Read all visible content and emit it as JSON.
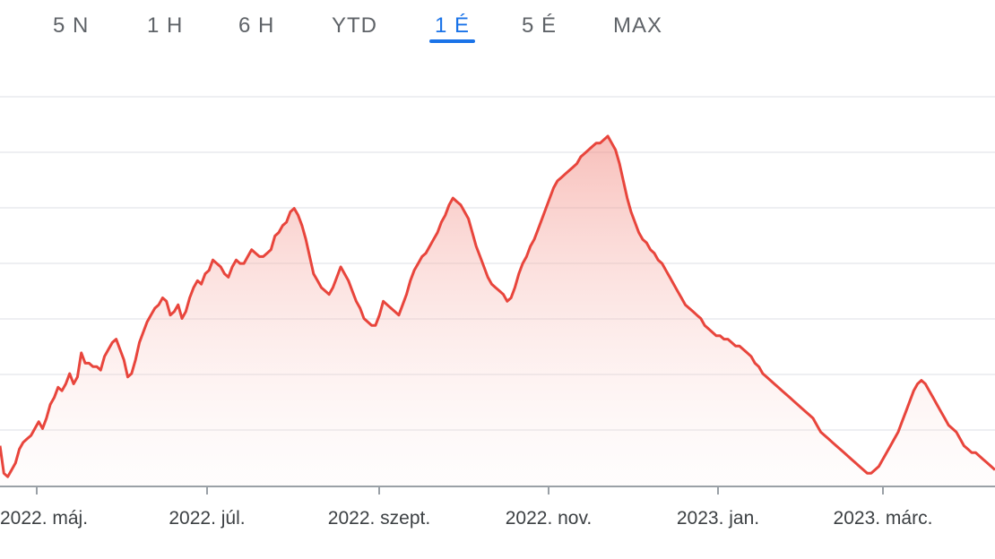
{
  "range_tabs": [
    {
      "label": "5 N",
      "active": false
    },
    {
      "label": "1 H",
      "active": false
    },
    {
      "label": "6 H",
      "active": false
    },
    {
      "label": "YTD",
      "active": false
    },
    {
      "label": "1 É",
      "active": true
    },
    {
      "label": "5 É",
      "active": false
    },
    {
      "label": "MAX",
      "active": false
    }
  ],
  "colors": {
    "accent": "#1a73e8",
    "line": "#e8453c",
    "fill": "#fbd4d1",
    "grid": "#e8eaed",
    "axis": "#9aa0a6"
  },
  "chart_data": {
    "type": "area",
    "title": "",
    "xlabel": "",
    "ylabel": "",
    "y_axis_labels_visible": false,
    "grid": true,
    "ylim": [
      0,
      100
    ],
    "x_tick_labels": [
      "2022. máj.",
      "2022. júl.",
      "2022. szept.",
      "2022. nov.",
      "2023. jan.",
      "2023. márc."
    ],
    "series": [
      {
        "values": [
          10,
          2,
          1,
          3,
          5,
          9,
          11,
          12,
          13,
          15,
          17,
          15,
          18,
          22,
          24,
          27,
          26,
          28,
          31,
          28,
          30,
          37,
          34,
          34,
          33,
          33,
          32,
          36,
          38,
          40,
          41,
          38,
          35,
          30,
          31,
          35,
          40,
          43,
          46,
          48,
          50,
          51,
          53,
          52,
          48,
          49,
          51,
          47,
          49,
          53,
          56,
          58,
          57,
          60,
          61,
          64,
          63,
          62,
          60,
          59,
          62,
          64,
          63,
          63,
          65,
          67,
          66,
          65,
          65,
          66,
          67,
          71,
          72,
          74,
          75,
          78,
          79,
          77,
          74,
          70,
          65,
          60,
          58,
          56,
          55,
          54,
          56,
          59,
          62,
          60,
          58,
          55,
          52,
          50,
          47,
          46,
          45,
          45,
          48,
          52,
          51,
          50,
          49,
          48,
          51,
          54,
          58,
          61,
          63,
          65,
          66,
          68,
          70,
          72,
          75,
          77,
          80,
          82,
          81,
          80,
          78,
          76,
          72,
          68,
          65,
          62,
          59,
          57,
          56,
          55,
          54,
          52,
          53,
          56,
          60,
          63,
          65,
          68,
          70,
          73,
          76,
          79,
          82,
          85,
          87,
          88,
          89,
          90,
          91,
          92,
          94,
          95,
          96,
          97,
          98,
          98,
          99,
          100,
          98,
          96,
          92,
          87,
          82,
          78,
          75,
          72,
          70,
          69,
          67,
          66,
          64,
          63,
          61,
          59,
          57,
          55,
          53,
          51,
          50,
          49,
          48,
          47,
          45,
          44,
          43,
          42,
          42,
          41,
          41,
          40,
          39,
          39,
          38,
          37,
          36,
          34,
          33,
          31,
          30,
          29,
          28,
          27,
          26,
          25,
          24,
          23,
          22,
          21,
          20,
          19,
          18,
          16,
          14,
          13,
          12,
          11,
          10,
          9,
          8,
          7,
          6,
          5,
          4,
          3,
          2,
          2,
          3,
          4,
          6,
          8,
          10,
          12,
          14,
          17,
          20,
          23,
          26,
          28,
          29,
          28,
          26,
          24,
          22,
          20,
          18,
          16,
          15,
          14,
          12,
          10,
          9,
          8,
          8,
          7,
          6,
          5,
          4,
          3
        ]
      }
    ]
  }
}
